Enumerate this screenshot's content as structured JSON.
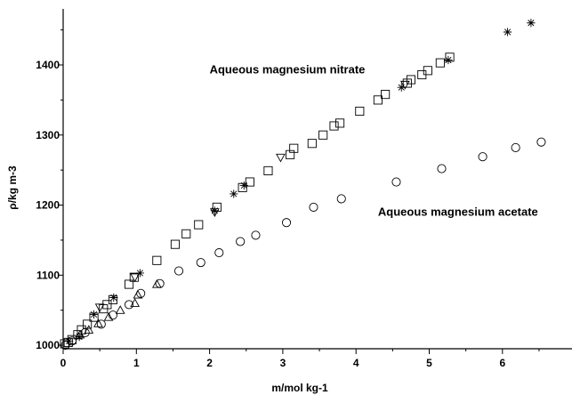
{
  "chart_data": {
    "type": "scatter",
    "title": "",
    "xlabel": "m/mol kg-1",
    "ylabel": "ρ/kg m-3",
    "xlim": [
      0,
      6.95
    ],
    "ylim": [
      995,
      1480
    ],
    "x_ticks": [
      "0",
      "1",
      "2",
      "3",
      "4",
      "5",
      "6"
    ],
    "y_ticks": [
      "1000",
      "1100",
      "1200",
      "1300",
      "1400"
    ],
    "grid": false,
    "legend": "none",
    "annotations": [
      {
        "text": "Aqueous magnesium nitrate",
        "x": 2.0,
        "y": 1388
      },
      {
        "text": "Aqueous magnesium acetate",
        "x": 4.3,
        "y": 1185
      }
    ],
    "series": [
      {
        "marker": "square",
        "points": [
          [
            0.02,
            1002
          ],
          [
            0.07,
            1004
          ],
          [
            0.12,
            1008
          ],
          [
            0.2,
            1015
          ],
          [
            0.25,
            1022
          ],
          [
            0.33,
            1030
          ],
          [
            0.42,
            1040
          ],
          [
            0.55,
            1052
          ],
          [
            0.6,
            1058
          ],
          [
            0.68,
            1065
          ],
          [
            0.9,
            1087
          ],
          [
            0.97,
            1097
          ],
          [
            1.28,
            1121
          ],
          [
            1.53,
            1144
          ],
          [
            1.68,
            1159
          ],
          [
            1.85,
            1172
          ],
          [
            2.1,
            1197
          ],
          [
            2.45,
            1225
          ],
          [
            2.55,
            1233
          ],
          [
            2.8,
            1249
          ],
          [
            3.1,
            1272
          ],
          [
            3.15,
            1281
          ],
          [
            3.4,
            1288
          ],
          [
            3.55,
            1300
          ],
          [
            3.7,
            1313
          ],
          [
            3.78,
            1317
          ],
          [
            4.05,
            1334
          ],
          [
            4.3,
            1350
          ],
          [
            4.4,
            1358
          ],
          [
            4.7,
            1374
          ],
          [
            4.75,
            1379
          ],
          [
            4.9,
            1386
          ],
          [
            4.98,
            1392
          ],
          [
            5.15,
            1403
          ],
          [
            5.28,
            1411
          ]
        ]
      },
      {
        "marker": "circle",
        "points": [
          [
            0.03,
            1000
          ],
          [
            0.12,
            1006
          ],
          [
            0.3,
            1018
          ],
          [
            0.52,
            1030
          ],
          [
            0.68,
            1043
          ],
          [
            0.9,
            1058
          ],
          [
            1.06,
            1074
          ],
          [
            1.32,
            1088
          ],
          [
            1.58,
            1106
          ],
          [
            1.88,
            1118
          ],
          [
            2.13,
            1132
          ],
          [
            2.42,
            1148
          ],
          [
            2.63,
            1157
          ],
          [
            3.05,
            1175
          ],
          [
            3.42,
            1197
          ],
          [
            3.8,
            1209
          ],
          [
            4.55,
            1233
          ],
          [
            5.17,
            1252
          ],
          [
            5.73,
            1269
          ],
          [
            6.18,
            1282
          ],
          [
            6.53,
            1290
          ]
        ]
      },
      {
        "marker": "triangle-up",
        "points": [
          [
            0.23,
            1015
          ],
          [
            0.35,
            1022
          ],
          [
            0.48,
            1031
          ],
          [
            0.62,
            1040
          ],
          [
            0.78,
            1050
          ],
          [
            0.98,
            1060
          ],
          [
            1.02,
            1072
          ],
          [
            1.28,
            1087
          ]
        ]
      },
      {
        "marker": "triangle-down",
        "points": [
          [
            0.5,
            1054
          ],
          [
            0.98,
            1097
          ],
          [
            2.07,
            1190
          ],
          [
            2.97,
            1268
          ],
          [
            4.67,
            1372
          ]
        ]
      },
      {
        "marker": "asterisk",
        "points": [
          [
            0.08,
            1006
          ],
          [
            0.22,
            1012
          ],
          [
            0.42,
            1044
          ],
          [
            0.69,
            1068
          ],
          [
            1.05,
            1103
          ],
          [
            2.07,
            1192
          ],
          [
            2.33,
            1216
          ],
          [
            2.47,
            1228
          ],
          [
            4.62,
            1368
          ],
          [
            5.26,
            1407
          ],
          [
            6.07,
            1447
          ],
          [
            6.39,
            1460
          ]
        ]
      }
    ]
  }
}
